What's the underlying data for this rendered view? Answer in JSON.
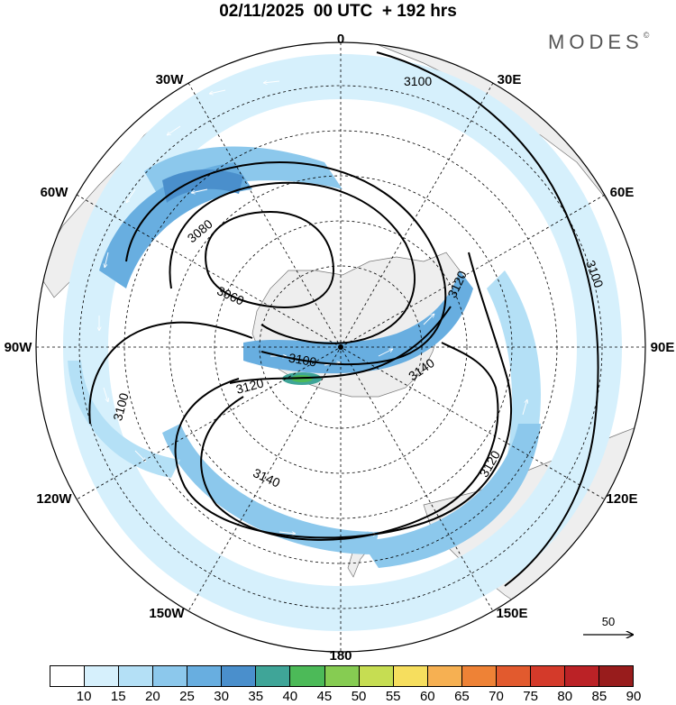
{
  "title": "02/11/2025  00 UTC  + 192 hrs",
  "brand": "MODES",
  "brand_mark": "©",
  "longitude_labels": {
    "lon_0": "0",
    "lon_30e": "30E",
    "lon_60e": "60E",
    "lon_90e": "90E",
    "lon_120e": "120E",
    "lon_150e": "150E",
    "lon_180": "180",
    "lon_150w": "150W",
    "lon_120w": "120W",
    "lon_90w": "90W",
    "lon_60w": "60W",
    "lon_30w": "30W"
  },
  "contour_labels": {
    "c3100_top": "3100",
    "c3100_right": "3100",
    "c3120_right": "3120",
    "c3140_right": "3140",
    "c3120_se": "3120",
    "c3140_sw": "3140",
    "c3080": "3080",
    "c3060": "3060",
    "c3100_center": "3100",
    "c3120_center": "3120",
    "c3100_left": "3100"
  },
  "reference_vector": {
    "value": "50"
  },
  "colorbar": {
    "labels": [
      "10",
      "15",
      "20",
      "25",
      "30",
      "35",
      "40",
      "45",
      "50",
      "55",
      "60",
      "65",
      "70",
      "75",
      "80",
      "85",
      "90"
    ],
    "colors": [
      "#ffffff",
      "#d6f0fc",
      "#b4e0f6",
      "#8cc8ec",
      "#68aee0",
      "#4a8fcc",
      "#3fa598",
      "#4cba58",
      "#86cc52",
      "#c6dd52",
      "#f6de5e",
      "#f6b052",
      "#ee8236",
      "#e25a2e",
      "#d43a2a",
      "#bb2226",
      "#981c1c"
    ]
  },
  "colors": {
    "land": "#eeeeee",
    "wind_light": "#d6f0fc",
    "wind_mid": "#a8d8f2",
    "wind_strong": "#7ab6e2",
    "wind_max": "#4a8fcc",
    "jet_core": "#4cba58"
  }
}
